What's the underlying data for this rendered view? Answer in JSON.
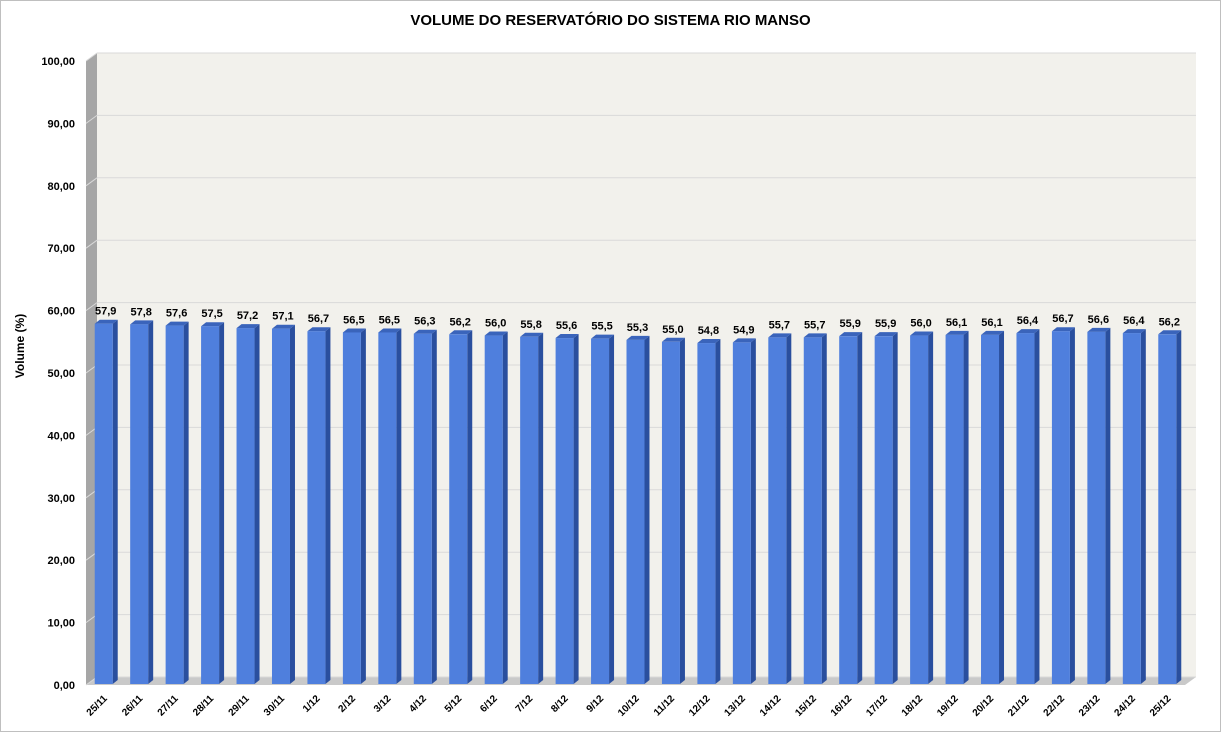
{
  "chart_data": {
    "type": "bar",
    "title": "VOLUME DO RESERVATÓRIO DO SISTEMA RIO MANSO",
    "xlabel": "",
    "ylabel": "Volume (%)",
    "ylim": [
      0,
      100
    ],
    "y_ticks": [
      "0,00",
      "10,00",
      "20,00",
      "30,00",
      "40,00",
      "50,00",
      "60,00",
      "70,00",
      "80,00",
      "90,00",
      "100,00"
    ],
    "grid": true,
    "legend": "none",
    "bar_style": "3d",
    "colors": {
      "bar_front": "#4f7fdd",
      "bar_side": "#2a4f9e",
      "bar_top": "#3a64bb",
      "plot_background": "#f2f1ec",
      "side_wall": "#a6a6a6",
      "floor": "#c9c9c9",
      "gridline": "#d9d9d9"
    },
    "categories": [
      "25/11",
      "26/11",
      "27/11",
      "28/11",
      "29/11",
      "30/11",
      "1/12",
      "2/12",
      "3/12",
      "4/12",
      "5/12",
      "6/12",
      "7/12",
      "8/12",
      "9/12",
      "10/12",
      "11/12",
      "12/12",
      "13/12",
      "14/12",
      "15/12",
      "16/12",
      "17/12",
      "18/12",
      "19/12",
      "20/12",
      "21/12",
      "22/12",
      "23/12",
      "24/12",
      "25/12"
    ],
    "values": [
      57.9,
      57.8,
      57.6,
      57.5,
      57.2,
      57.1,
      56.7,
      56.5,
      56.5,
      56.3,
      56.2,
      56.0,
      55.8,
      55.6,
      55.5,
      55.3,
      55.0,
      54.8,
      54.9,
      55.7,
      55.7,
      55.9,
      55.9,
      56.0,
      56.1,
      56.1,
      56.4,
      56.7,
      56.6,
      56.4,
      56.2
    ],
    "data_labels": [
      "57,9",
      "57,8",
      "57,6",
      "57,5",
      "57,2",
      "57,1",
      "56,7",
      "56,5",
      "56,5",
      "56,3",
      "56,2",
      "56,0",
      "55,8",
      "55,6",
      "55,5",
      "55,3",
      "55,0",
      "54,8",
      "54,9",
      "55,7",
      "55,7",
      "55,9",
      "55,9",
      "56,0",
      "56,1",
      "56,1",
      "56,4",
      "56,7",
      "56,6",
      "56,4",
      "56,2"
    ]
  }
}
